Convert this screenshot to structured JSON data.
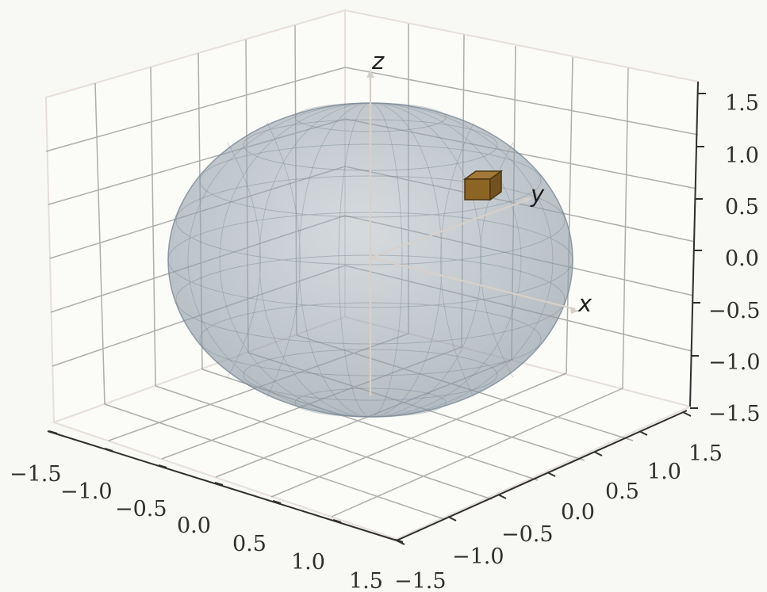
{
  "diagram": {
    "kind": "3d-bloch-sphere",
    "background_color": "#f8f8f4",
    "pane_edge_color": "#e6dfdb",
    "grid_color": "#9a9a9a",
    "sphere_color": "#9aa7b2",
    "wire_color": "#7b8894",
    "cube_color": "#8c6424",
    "axis_arrow_color": "#d8d0c8"
  },
  "axes": {
    "x_letter": "x",
    "y_letter": "y",
    "z_letter": "z",
    "x_ticks": [
      "−1.5",
      "−1.0",
      "−0.5",
      "0.0",
      "0.5",
      "1.0",
      "1.5"
    ],
    "y_ticks": [
      "−1.5",
      "−1.0",
      "−0.5",
      "0.0",
      "0.5",
      "1.0",
      "1.5"
    ],
    "z_ticks": [
      "1.5",
      "1.0",
      "0.5",
      "0.0",
      "−0.5",
      "−1.0",
      "−1.5"
    ]
  }
}
